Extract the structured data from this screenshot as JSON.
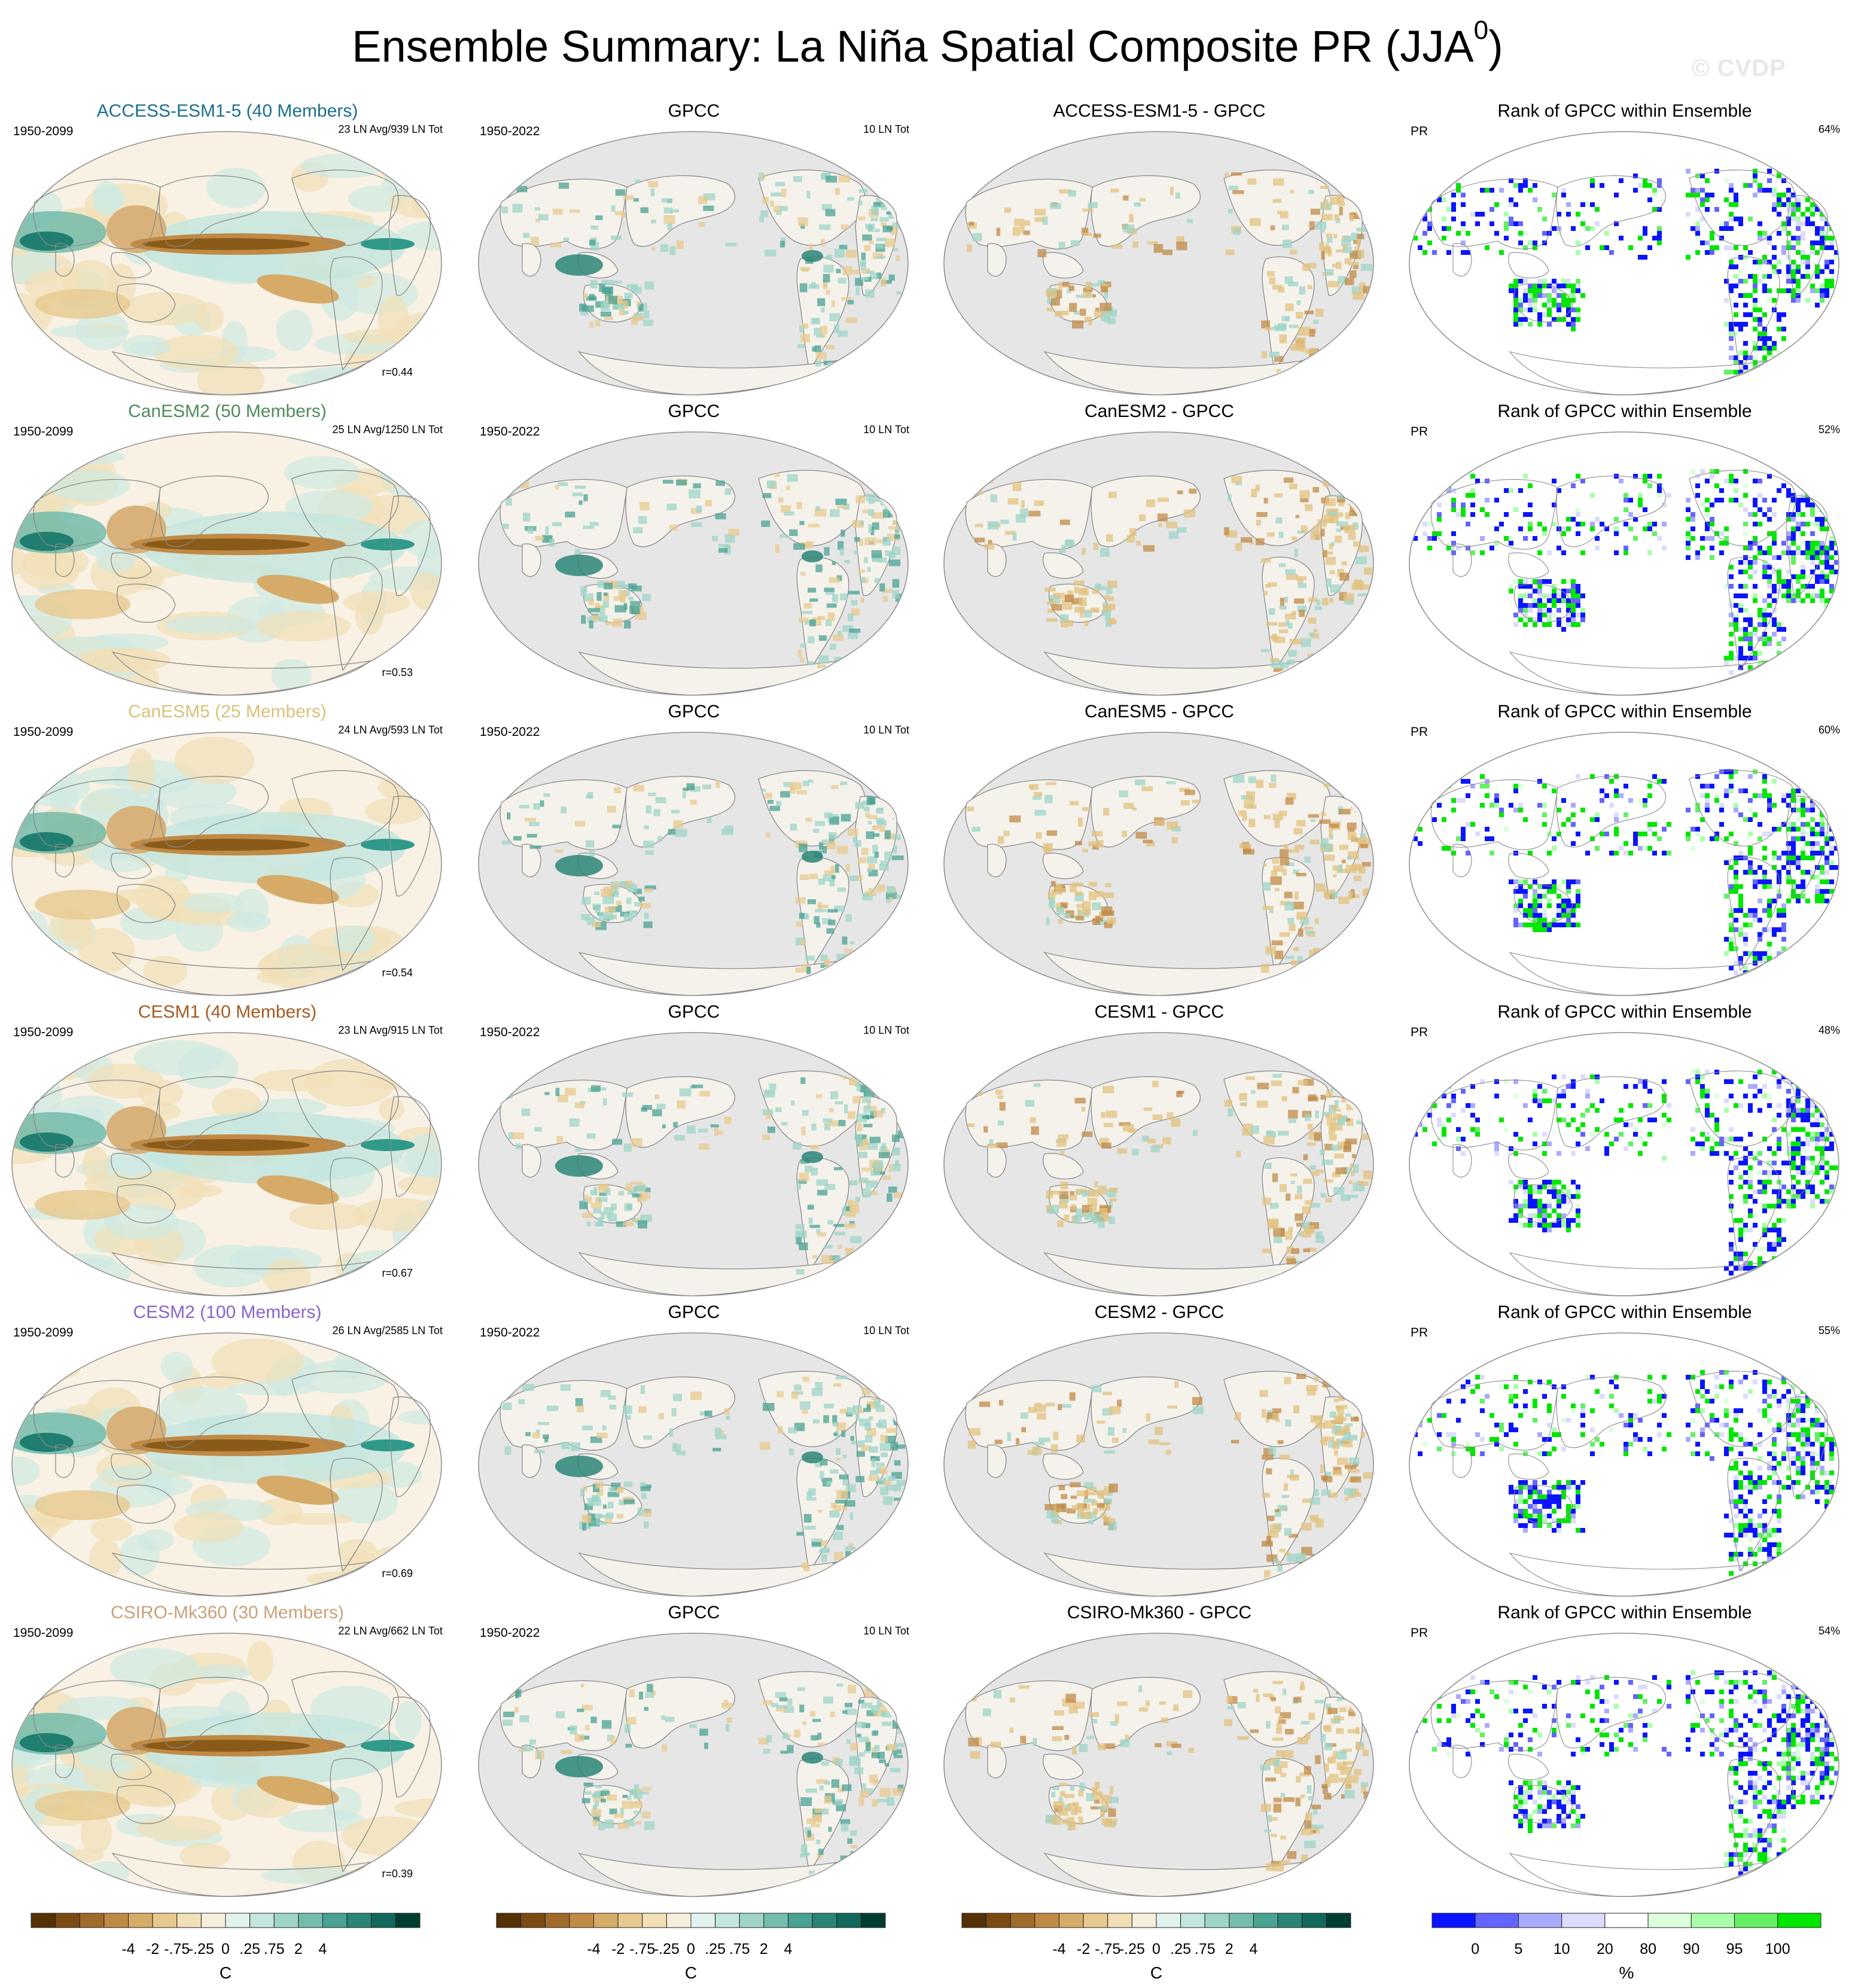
{
  "header": {
    "title": "Ensemble Summary: La Niña Spatial Composite PR (JJA",
    "title_sup": "0",
    "title_close": ")",
    "watermark": "© CVDP"
  },
  "chart_data": {
    "type": "heatmap",
    "projection": "Robinson, Pacific-centered",
    "colors": {
      "model_title_colors": [
        "#1a6f8e",
        "#4e8c5a",
        "#d8c27a",
        "#a55a22",
        "#8a63c9",
        "#c9a27a"
      ]
    },
    "rows": [
      {
        "model_title": "ACCESS-ESM1-5 (40 Members)",
        "model_years": "1950-2099",
        "model_counts": "23 LN Avg/939 LN Tot",
        "pattern_corr": "r=0.44",
        "obs_title": "GPCC",
        "obs_years": "1950-2022",
        "obs_counts": "10 LN Tot",
        "diff_title": "ACCESS-ESM1-5 - GPCC",
        "rank_title": "Rank of GPCC within Ensemble",
        "rank_var": "PR",
        "rank_pct": "64%"
      },
      {
        "model_title": "CanESM2 (50 Members)",
        "model_years": "1950-2099",
        "model_counts": "25 LN Avg/1250 LN Tot",
        "pattern_corr": "r=0.53",
        "obs_title": "GPCC",
        "obs_years": "1950-2022",
        "obs_counts": "10 LN Tot",
        "diff_title": "CanESM2 - GPCC",
        "rank_title": "Rank of GPCC within Ensemble",
        "rank_var": "PR",
        "rank_pct": "52%"
      },
      {
        "model_title": "CanESM5 (25 Members)",
        "model_years": "1950-2099",
        "model_counts": "24 LN Avg/593 LN Tot",
        "pattern_corr": "r=0.54",
        "obs_title": "GPCC",
        "obs_years": "1950-2022",
        "obs_counts": "10 LN Tot",
        "diff_title": "CanESM5 - GPCC",
        "rank_title": "Rank of GPCC within Ensemble",
        "rank_var": "PR",
        "rank_pct": "60%"
      },
      {
        "model_title": "CESM1 (40 Members)",
        "model_years": "1950-2099",
        "model_counts": "23 LN Avg/915 LN Tot",
        "pattern_corr": "r=0.67",
        "obs_title": "GPCC",
        "obs_years": "1950-2022",
        "obs_counts": "10 LN Tot",
        "diff_title": "CESM1 - GPCC",
        "rank_title": "Rank of GPCC within Ensemble",
        "rank_var": "PR",
        "rank_pct": "48%"
      },
      {
        "model_title": "CESM2 (100 Members)",
        "model_years": "1950-2099",
        "model_counts": "26 LN Avg/2585 LN Tot",
        "pattern_corr": "r=0.69",
        "obs_title": "GPCC",
        "obs_years": "1950-2022",
        "obs_counts": "10 LN Tot",
        "diff_title": "CESM2 - GPCC",
        "rank_title": "Rank of GPCC within Ensemble",
        "rank_var": "PR",
        "rank_pct": "55%"
      },
      {
        "model_title": "CSIRO-Mk360 (30 Members)",
        "model_years": "1950-2099",
        "model_counts": "22 LN Avg/662 LN Tot",
        "pattern_corr": "r=0.39",
        "obs_title": "GPCC",
        "obs_years": "1950-2022",
        "obs_counts": "10 LN Tot",
        "diff_title": "CSIRO-Mk360 - GPCC",
        "rank_title": "Rank of GPCC within Ensemble",
        "rank_var": "PR",
        "rank_pct": "54%"
      }
    ],
    "colorbars": {
      "anomaly": {
        "tick_labels": [
          "-4",
          "-2",
          "-.75",
          "-.25",
          "0",
          ".25",
          ".75",
          "2",
          "4"
        ],
        "unit": "C",
        "colors": [
          "#543005",
          "#7a4a12",
          "#a06a2a",
          "#bf8a45",
          "#d6ab68",
          "#e7c98f",
          "#f1dfb6",
          "#f7efdc",
          "#e2f2ee",
          "#c3e6de",
          "#9ed4c8",
          "#74bcae",
          "#4aa293",
          "#2a8577",
          "#11675b",
          "#003c30"
        ]
      },
      "rank": {
        "tick_labels": [
          "0",
          "5",
          "10",
          "20",
          "80",
          "90",
          "95",
          "100"
        ],
        "unit": "%",
        "colors": [
          "#0a14ff",
          "#6464ff",
          "#aaaaff",
          "#dcdcff",
          "#ffffff",
          "#dcffdc",
          "#aaffaa",
          "#64f064",
          "#00e600"
        ]
      }
    }
  }
}
